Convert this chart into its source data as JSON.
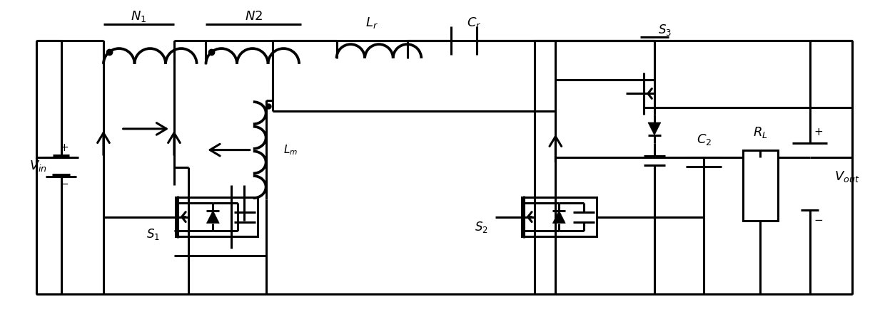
{
  "bg_color": "#ffffff",
  "line_color": "#000000",
  "lw": 2.2,
  "lw_thick": 3.0,
  "fig_width": 12.4,
  "fig_height": 4.41,
  "dpi": 100
}
